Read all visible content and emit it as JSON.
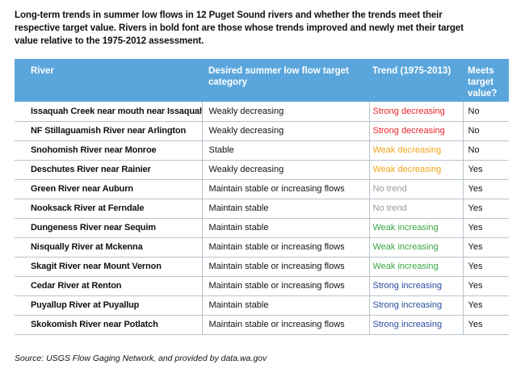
{
  "title": "Long-term trends in summer low flows in 12 Puget Sound rivers and whether the trends meet their respective target value. Rivers in bold font are those whose trends improved and newly met their target value relative to the 1975-2012 assessment.",
  "colors": {
    "header_bg": "#5aa6dc",
    "strong_decreasing": "#e8262c",
    "weak_decreasing": "#f2a51a",
    "no_trend": "#9a9a9a",
    "weak_increasing": "#3aa646",
    "strong_increasing": "#2a4ea1"
  },
  "table": {
    "headers": {
      "river": "River",
      "target": "Desired summer low flow target category",
      "trend": "Trend (1975-2013)",
      "meets": "Meets target value?"
    },
    "rows": [
      {
        "river": "Issaquah Creek near mouth near Issaquah",
        "target": "Weakly decreasing",
        "trend": "Strong decreasing",
        "trend_color": "#e8262c",
        "meets": "No"
      },
      {
        "river": "NF Stillaguamish River near Arlington",
        "target": "Weakly decreasing",
        "trend": "Strong decreasing",
        "trend_color": "#e8262c",
        "meets": "No"
      },
      {
        "river": "Snohomish River near Monroe",
        "target": "Stable",
        "trend": "Weak decreasing",
        "trend_color": "#f2a51a",
        "meets": "No"
      },
      {
        "river": "Deschutes River near Rainier",
        "target": "Weakly decreasing",
        "trend": "Weak decreasing",
        "trend_color": "#f2a51a",
        "meets": "Yes"
      },
      {
        "river": "Green River near Auburn",
        "target": "Maintain stable or increasing flows",
        "trend": "No trend",
        "trend_color": "#9a9a9a",
        "meets": "Yes"
      },
      {
        "river": "Nooksack River at Ferndale",
        "target": "Maintain stable",
        "trend": "No trend",
        "trend_color": "#9a9a9a",
        "meets": "Yes"
      },
      {
        "river": "Dungeness River near Sequim",
        "target": "Maintain stable",
        "trend": "Weak increasing",
        "trend_color": "#3aa646",
        "meets": "Yes"
      },
      {
        "river": "Nisqually River at Mckenna",
        "target": "Maintain stable or increasing flows",
        "trend": "Weak increasing",
        "trend_color": "#3aa646",
        "meets": "Yes"
      },
      {
        "river": "Skagit River near Mount Vernon",
        "target": "Maintain stable or increasing flows",
        "trend": "Weak increasing",
        "trend_color": "#3aa646",
        "meets": "Yes"
      },
      {
        "river": "Cedar River at Renton",
        "target": "Maintain stable or increasing flows",
        "trend": "Strong increasing",
        "trend_color": "#2a4ea1",
        "meets": "Yes"
      },
      {
        "river": "Puyallup River at Puyallup",
        "target": "Maintain stable",
        "trend": "Strong increasing",
        "trend_color": "#2a4ea1",
        "meets": "Yes"
      },
      {
        "river": "Skokomish River near Potlatch",
        "target": "Maintain stable or increasing flows",
        "trend": "Strong increasing",
        "trend_color": "#2a4ea1",
        "meets": "Yes"
      }
    ]
  },
  "source": "Source: USGS Flow Gaging Network, and provided by data.wa.gov"
}
